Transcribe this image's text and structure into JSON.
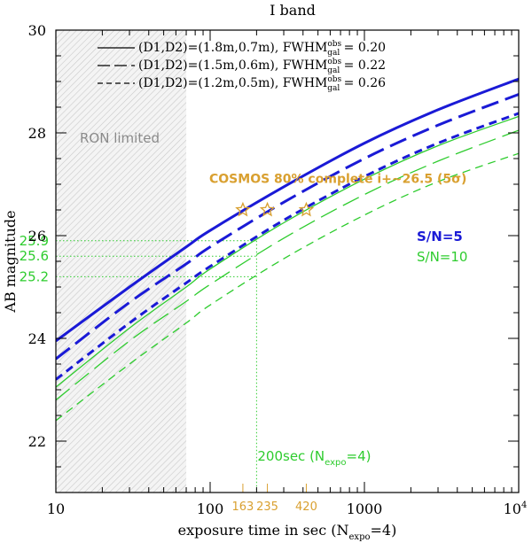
{
  "chart_data": {
    "type": "line",
    "title": "I band",
    "xlabel_main": "exposure time in sec (N",
    "xlabel_sub": "expo",
    "xlabel_tail": "=4)",
    "ylabel": "AB magnitude",
    "xscale": "log",
    "xlim": [
      10,
      10000
    ],
    "ylim": [
      21,
      30
    ],
    "x_ticks": [
      {
        "value": 10,
        "label": "10"
      },
      {
        "value": 100,
        "label": "100"
      },
      {
        "value": 1000,
        "label": "1000"
      },
      {
        "value": 10000,
        "label": "10",
        "sup": "4"
      }
    ],
    "y_ticks": [
      {
        "value": 22,
        "label": "22"
      },
      {
        "value": 24,
        "label": "24"
      },
      {
        "value": 26,
        "label": "26"
      },
      {
        "value": 28,
        "label": "28"
      },
      {
        "value": 30,
        "label": "30"
      }
    ],
    "series": [
      {
        "name": "(D1,D2)=(1.8m,0.7m) S/N=5",
        "snr": 5,
        "style": "solid",
        "color": "#1a1ad6",
        "width": 3,
        "x": [
          10,
          30,
          70,
          100,
          300,
          1000,
          3000,
          10000
        ],
        "y": [
          23.95,
          25.0,
          25.78,
          26.1,
          26.95,
          27.8,
          28.45,
          29.05
        ]
      },
      {
        "name": "(D1,D2)=(1.5m,0.6m) S/N=5",
        "snr": 5,
        "style": "longdash",
        "color": "#1a1ad6",
        "width": 3,
        "x": [
          10,
          30,
          70,
          100,
          300,
          1000,
          3000,
          10000
        ],
        "y": [
          23.6,
          24.7,
          25.45,
          25.78,
          26.65,
          27.5,
          28.15,
          28.75
        ]
      },
      {
        "name": "(D1,D2)=(1.2m,0.5m) S/N=5",
        "snr": 5,
        "style": "shortdash",
        "color": "#1a1ad6",
        "width": 3,
        "x": [
          10,
          30,
          70,
          100,
          300,
          1000,
          3000,
          10000
        ],
        "y": [
          23.2,
          24.3,
          25.08,
          25.4,
          26.3,
          27.15,
          27.8,
          28.38
        ]
      },
      {
        "name": "(D1,D2)=(1.8m,0.7m) S/N=10",
        "snr": 10,
        "style": "solid",
        "color": "#2ecc2e",
        "width": 1.3,
        "x": [
          10,
          30,
          70,
          100,
          300,
          1000,
          3000,
          10000
        ],
        "y": [
          23.05,
          24.2,
          25.0,
          25.35,
          26.25,
          27.1,
          27.75,
          28.32
        ]
      },
      {
        "name": "(D1,D2)=(1.5m,0.6m) S/N=10",
        "snr": 10,
        "style": "longdash",
        "color": "#2ecc2e",
        "width": 1.3,
        "x": [
          10,
          30,
          70,
          100,
          300,
          1000,
          3000,
          10000
        ],
        "y": [
          22.8,
          23.95,
          24.72,
          25.05,
          25.95,
          26.8,
          27.45,
          28.05
        ]
      },
      {
        "name": "(D1,D2)=(1.2m,0.5m) S/N=10",
        "snr": 10,
        "style": "shortdash",
        "color": "#2ecc2e",
        "width": 1.3,
        "x": [
          10,
          30,
          70,
          100,
          300,
          1000,
          3000,
          10000
        ],
        "y": [
          22.4,
          23.5,
          24.3,
          24.65,
          25.55,
          26.4,
          27.05,
          27.6
        ]
      }
    ],
    "legend": [
      {
        "style": "solid",
        "label": "(D1,D2)=(1.8m,0.7m), FWHM",
        "sup": "obs",
        "sub": "gal",
        "value": "= 0.20"
      },
      {
        "style": "longdash",
        "label": "(D1,D2)=(1.5m,0.6m), FWHM",
        "sup": "obs",
        "sub": "gal",
        "value": "= 0.22"
      },
      {
        "style": "shortdash",
        "label": "(D1,D2)=(1.2m,0.5m), FWHM",
        "sup": "obs",
        "sub": "gal",
        "value": "= 0.26"
      }
    ],
    "legend_placement": "top-left",
    "ron_region": {
      "x_max": 70,
      "label": "RON limited"
    },
    "cosmos": {
      "label": "COSMOS 80% complete i+~26.5 (5σ)",
      "magnitude": 26.5,
      "stars_x": [
        163,
        235,
        420
      ],
      "tick_labels": [
        "163",
        "235",
        "420"
      ],
      "color": "#d9a030"
    },
    "snr_labels": [
      {
        "text": "S/N=5",
        "color": "#1a1ad6"
      },
      {
        "text": "S/N=10",
        "color": "#2ecc2e"
      }
    ],
    "reference": {
      "exposure": 200,
      "label_main": "200sec (N",
      "label_sub": "expo",
      "label_tail": "=4)",
      "levels": [
        {
          "y": 25.9,
          "label": "25.9"
        },
        {
          "y": 25.6,
          "label": "25.6"
        },
        {
          "y": 25.2,
          "label": "25.2"
        }
      ],
      "color": "#2ecc2e"
    }
  }
}
